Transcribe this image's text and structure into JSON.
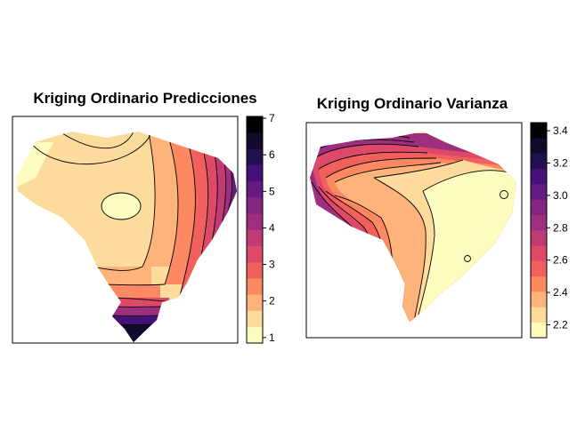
{
  "panels": [
    {
      "title": "Kriging Ordinario Predicciones",
      "legend": {
        "ticks": [
          "1",
          "2",
          "3",
          "4",
          "5",
          "6",
          "7"
        ],
        "range": [
          0.85,
          7.05
        ],
        "colors": [
          "#FCFDBF",
          "#FDDB9C",
          "#FEB37A",
          "#FC8961",
          "#F1605D",
          "#DD4968",
          "#C03A76",
          "#9E2F7F",
          "#822681",
          "#641A80",
          "#451077",
          "#221150",
          "#0E0B2B",
          "#000004"
        ]
      }
    },
    {
      "title": "Kriging Ordinario Varianza",
      "legend": {
        "ticks": [
          "2.2",
          "2.4",
          "2.6",
          "2.8",
          "3.0",
          "3.2",
          "3.4"
        ],
        "range": [
          2.12,
          3.45
        ],
        "colors": [
          "#FCFDBF",
          "#FDDB9C",
          "#FEB37A",
          "#FC8961",
          "#F1605D",
          "#DD4968",
          "#C03A76",
          "#9E2F7F",
          "#822681",
          "#641A80",
          "#451077",
          "#221150",
          "#0E0B2B",
          "#000004"
        ]
      }
    }
  ]
}
